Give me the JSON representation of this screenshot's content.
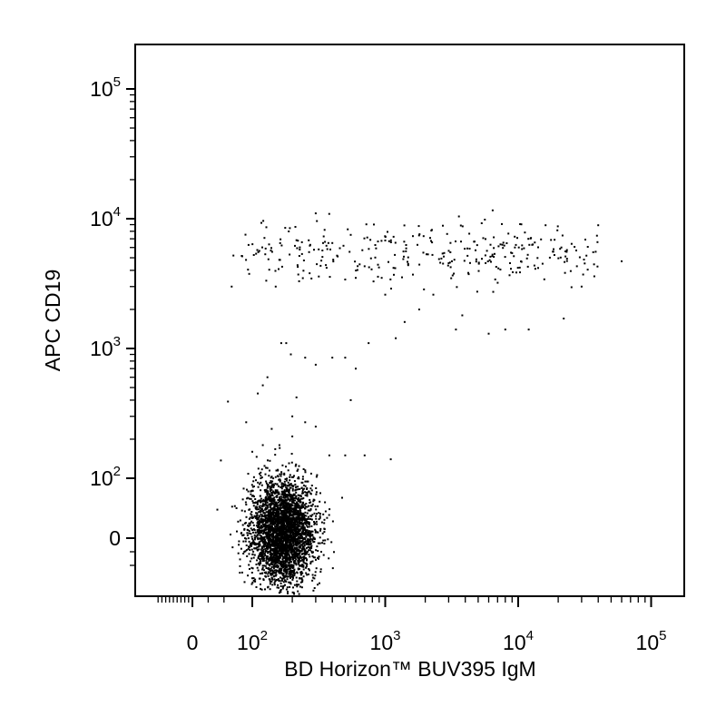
{
  "chart_data": {
    "type": "scatter",
    "title": "",
    "xlabel": "BD Horizon™ BUV395 IgM",
    "ylabel": "APC CD19",
    "x_scale": "biexponential",
    "y_scale": "biexponential",
    "xlim": [
      -200,
      200000
    ],
    "ylim": [
      -150,
      200000
    ],
    "grid": false,
    "x_ticks": [
      {
        "value": 0,
        "base": "0",
        "exp": ""
      },
      {
        "value": 100,
        "base": "10",
        "exp": "2"
      },
      {
        "value": 1000,
        "base": "10",
        "exp": "3"
      },
      {
        "value": 10000,
        "base": "10",
        "exp": "4"
      },
      {
        "value": 100000,
        "base": "10",
        "exp": "5"
      }
    ],
    "y_ticks": [
      {
        "value": 0,
        "base": "0",
        "exp": ""
      },
      {
        "value": 100,
        "base": "10",
        "exp": "2"
      },
      {
        "value": 1000,
        "base": "10",
        "exp": "3"
      },
      {
        "value": 10000,
        "base": "10",
        "exp": "4"
      },
      {
        "value": 100000,
        "base": "10",
        "exp": "5"
      }
    ],
    "populations": [
      {
        "description": "CD19-negative cluster",
        "x_center": 170,
        "y_center": 10,
        "x_spread": 110,
        "y_spread": 45,
        "count": 3500
      },
      {
        "description": "CD19-positive band",
        "x_range": [
          70,
          40000
        ],
        "y_center": 5500,
        "count": 330
      }
    ],
    "points": [
      [
        150,
        3000
      ],
      [
        225,
        3300
      ],
      [
        270,
        3800
      ],
      [
        300,
        11000
      ],
      [
        350,
        8200
      ],
      [
        400,
        6500
      ],
      [
        500,
        3400
      ],
      [
        600,
        3500
      ],
      [
        700,
        4300
      ],
      [
        1000,
        2600
      ],
      [
        1200,
        1200
      ],
      [
        1400,
        1600
      ],
      [
        1800,
        2000
      ],
      [
        2300,
        2600
      ],
      [
        3400,
        1400
      ],
      [
        3800,
        1800
      ],
      [
        6000,
        1300
      ],
      [
        8000,
        1400
      ],
      [
        12000,
        1400
      ],
      [
        22000,
        1700
      ],
      [
        30000,
        3000
      ],
      [
        60000,
        4700
      ],
      [
        40000,
        8900
      ],
      [
        165,
        1100
      ],
      [
        180,
        1100
      ],
      [
        130,
        600
      ],
      [
        110,
        450
      ],
      [
        195,
        900
      ],
      [
        250,
        850
      ],
      [
        300,
        750
      ],
      [
        400,
        850
      ],
      [
        500,
        850
      ],
      [
        550,
        400
      ],
      [
        600,
        700
      ],
      [
        750,
        1100
      ],
      [
        140,
        240
      ],
      [
        160,
        180
      ],
      [
        200,
        300
      ],
      [
        250,
        270
      ],
      [
        300,
        250
      ],
      [
        500,
        150
      ],
      [
        700,
        150
      ],
      [
        1100,
        140
      ],
      [
        90,
        270
      ],
      [
        100,
        160
      ],
      [
        120,
        180
      ],
      [
        200,
        210
      ],
      [
        380,
        150
      ],
      [
        130,
        120
      ],
      [
        250,
        115
      ],
      [
        45,
        390
      ],
      [
        70,
        3000
      ],
      [
        120,
        520
      ],
      [
        215,
        420
      ]
    ]
  },
  "colors": {
    "points": "#000000",
    "axes": "#000000",
    "background": "#ffffff"
  }
}
